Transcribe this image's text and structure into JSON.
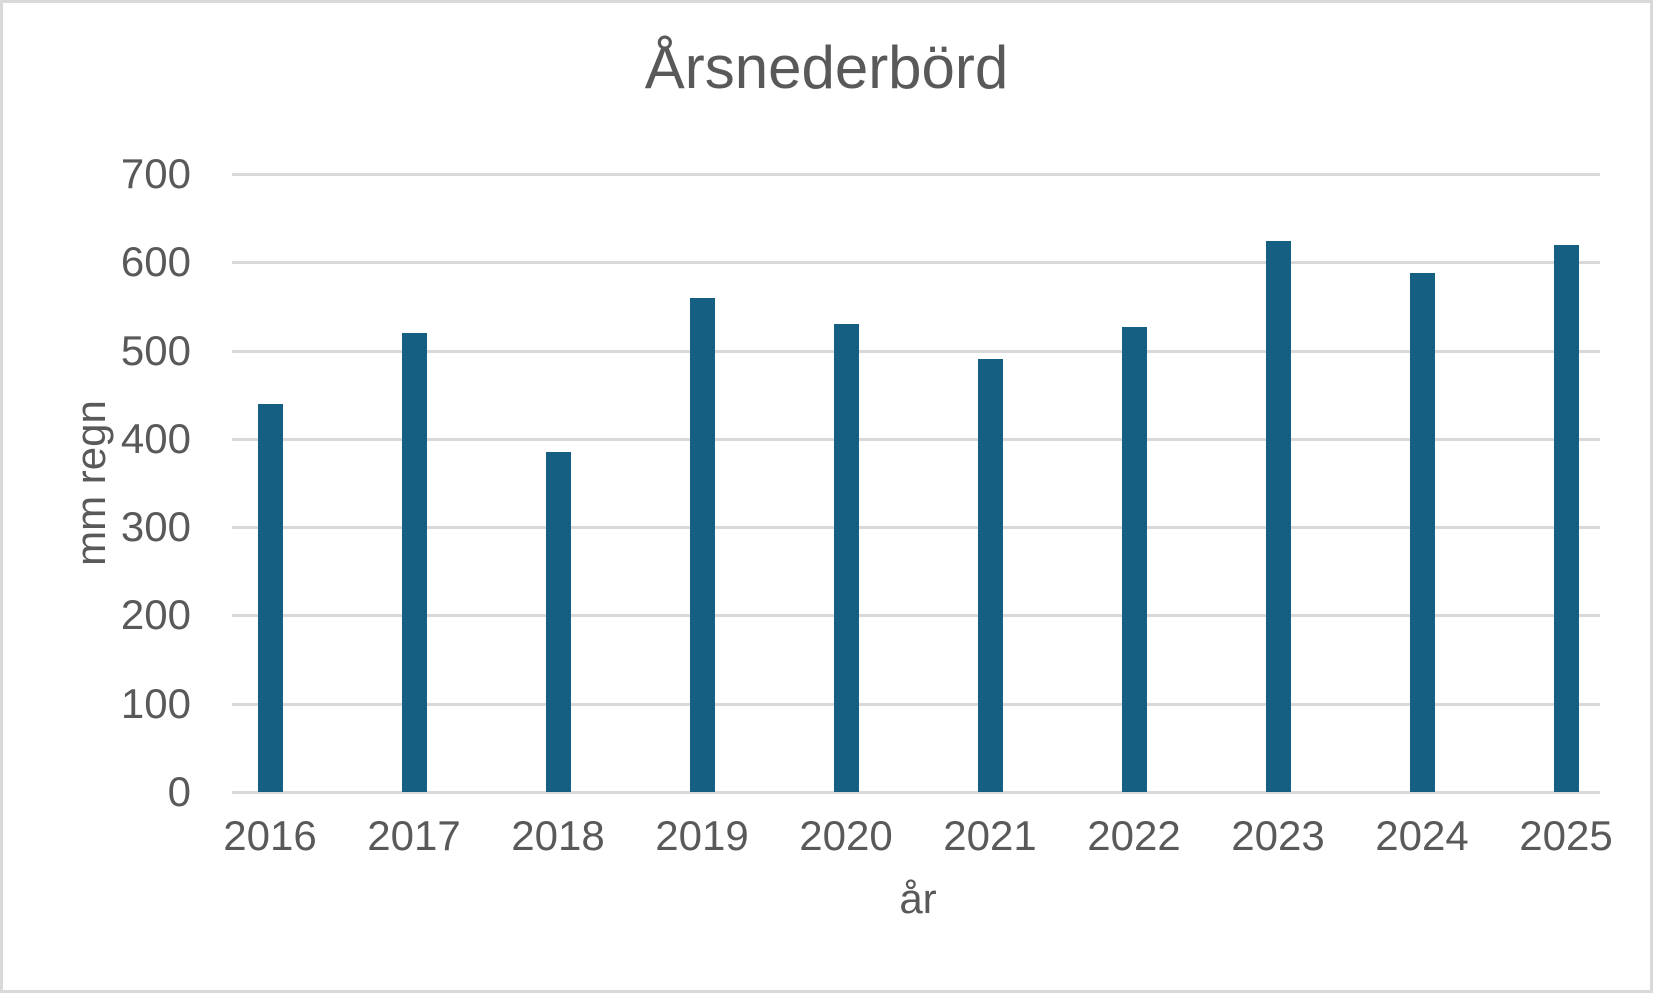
{
  "window": {
    "background": "#FFFFFF",
    "border_color": "#D9D9D9"
  },
  "chart_data": {
    "type": "bar",
    "title": "Årsnederbörd",
    "xlabel": "år",
    "ylabel": "mm regn",
    "categories": [
      "2016",
      "2017",
      "2018",
      "2019",
      "2020",
      "2021",
      "2022",
      "2023",
      "2024",
      "2025"
    ],
    "values": [
      440,
      520,
      385,
      560,
      530,
      490,
      527,
      624,
      588,
      620
    ],
    "ylim": [
      0,
      700
    ],
    "yticks": [
      0,
      100,
      200,
      300,
      400,
      500,
      600,
      700
    ],
    "grid": "horizontal",
    "legend": "none",
    "bar_color": "#156082",
    "text_color": "#595959",
    "gridline_color": "#D9D9D9"
  }
}
